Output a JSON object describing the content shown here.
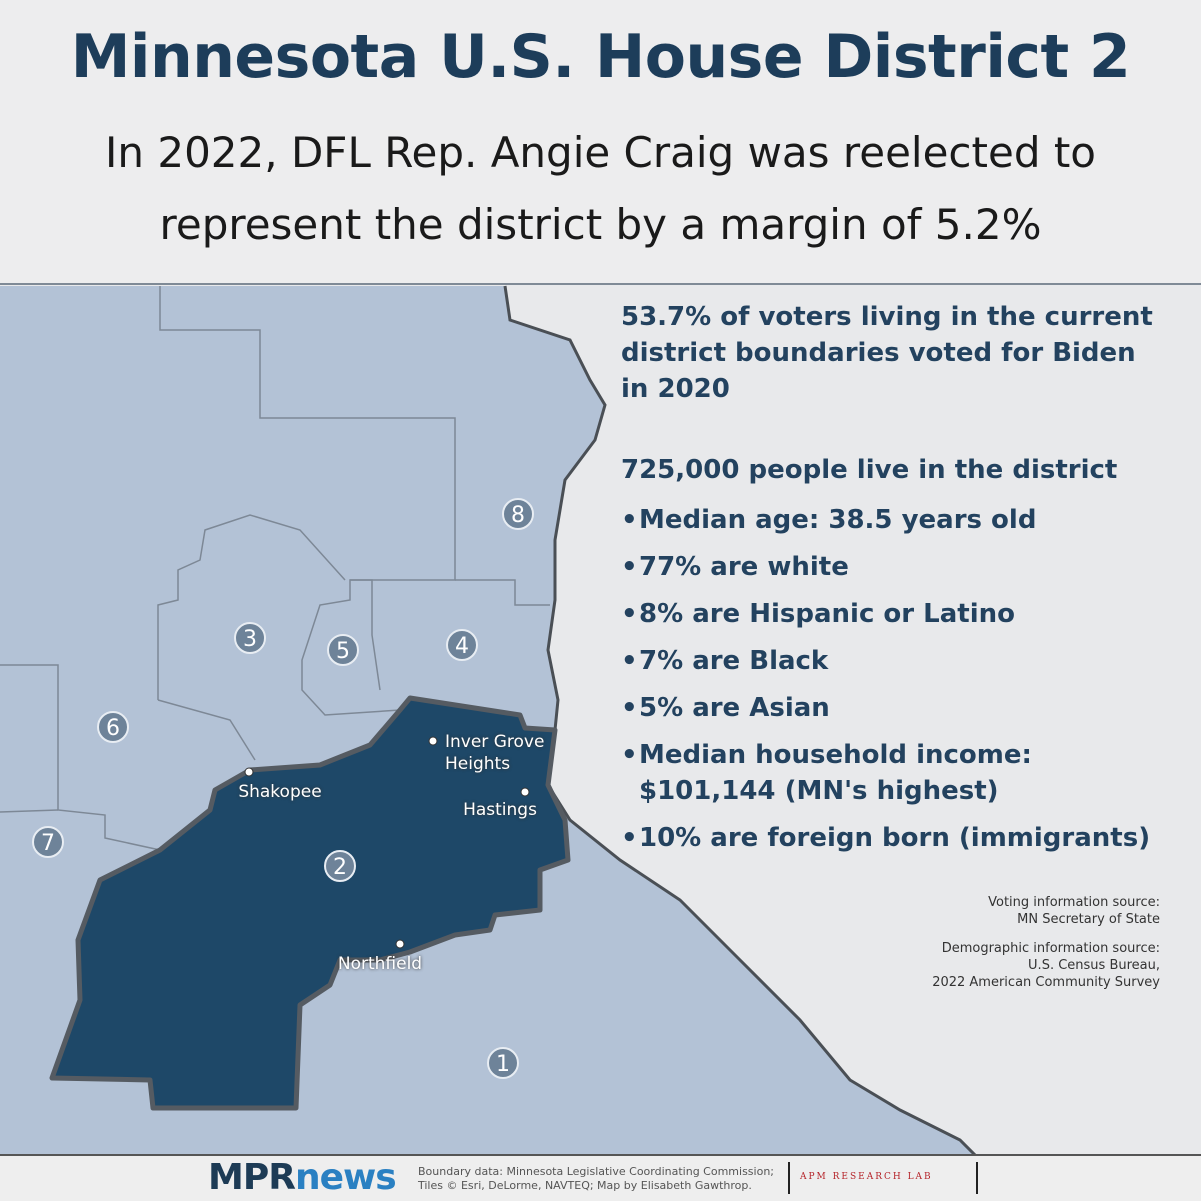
{
  "header": {
    "title": "Minnesota U.S. House District 2",
    "subtitle_lines": [
      "In 2022, DFL Rep. Angie Craig was reelected to",
      "represent the district by a margin of 5.2%"
    ]
  },
  "map": {
    "districts": [
      "8",
      "3",
      "5",
      "4",
      "6",
      "7",
      "2",
      "1"
    ],
    "cities": [
      "Inver Grove Heights",
      "Shakopee",
      "Hastings",
      "Northfield"
    ]
  },
  "facts": {
    "voting": [
      {
        "text": "53.7% of voters",
        "bold": true
      },
      {
        "text": " living in the current district boundaries ",
        "bold": false
      },
      {
        "text": "voted for Biden in 2020",
        "bold": true
      }
    ],
    "population_heading": "725,000 people live in the district",
    "bullets": [
      "Median age: 38.5 years old",
      "77% are white",
      "8% are Hispanic or Latino",
      "7% are Black",
      "5% are Asian",
      "Median household income: $101,144 (MN's highest)",
      "10% are foreign born (immigrants)"
    ]
  },
  "sources": {
    "voting": [
      "Voting information source:",
      "MN Secretary of State"
    ],
    "demographic": [
      "Demographic information source:",
      "U.S. Census Bureau,",
      "2022 American Community Survey"
    ]
  },
  "footer": {
    "logo_mpr": "MPR",
    "logo_news": "news",
    "credits": [
      "Boundary data: Minnesota Legislative Coordinating Commission;",
      "Tiles © Esri, DeLorme, NAVTEQ; Map by Elisabeth Gawthrop."
    ],
    "partner": "APM RESEARCH LAB"
  }
}
